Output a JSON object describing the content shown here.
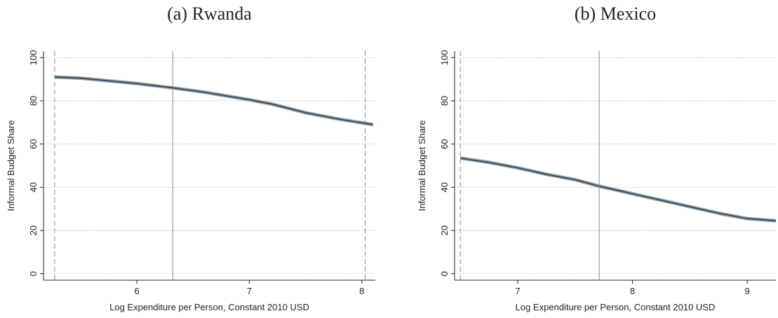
{
  "chart_data": [
    {
      "type": "line",
      "title": "(a) Rwanda",
      "xlabel": "Log Expenditure per Person, Constant 2010 USD",
      "ylabel": "Informal Budget Share",
      "x": [
        5.27,
        5.5,
        6,
        6.32,
        6.6,
        7,
        7.2,
        7.5,
        7.8,
        8.1
      ],
      "series": [
        {
          "color": "#2f4b5f",
          "values": [
            91,
            90.5,
            88,
            86,
            84,
            80.5,
            78.5,
            74.5,
            71.5,
            69
          ]
        }
      ],
      "xlim": [
        5.17,
        8.12
      ],
      "ylim": [
        -3,
        103
      ],
      "xticks": [
        6,
        7,
        8
      ],
      "yticks": [
        0,
        20,
        40,
        60,
        80,
        100
      ],
      "grid": true,
      "vlines": [
        {
          "x": 5.27,
          "style": "dashed"
        },
        {
          "x": 6.32,
          "style": "solid"
        },
        {
          "x": 8.03,
          "style": "dashed"
        }
      ]
    },
    {
      "type": "line",
      "title": "(b) Mexico",
      "xlabel": "Log Expenditure per Person, Constant 2010 USD",
      "ylabel": "Informal Budget Share",
      "x": [
        6.5,
        6.75,
        7,
        7.25,
        7.5,
        7.71,
        8,
        8.25,
        8.5,
        8.75,
        9,
        9.25
      ],
      "series": [
        {
          "color": "#2f4b5f",
          "values": [
            53.5,
            51.5,
            49,
            46,
            43.5,
            40.5,
            37,
            34,
            31,
            28,
            25.5,
            24.5
          ]
        }
      ],
      "xlim": [
        6.45,
        9.25
      ],
      "ylim": [
        -3,
        103
      ],
      "xticks": [
        7,
        8,
        9
      ],
      "yticks": [
        0,
        20,
        40,
        60,
        80,
        100
      ],
      "grid": true,
      "vlines": [
        {
          "x": 6.5,
          "style": "dashed"
        },
        {
          "x": 7.71,
          "style": "solid"
        }
      ]
    }
  ]
}
